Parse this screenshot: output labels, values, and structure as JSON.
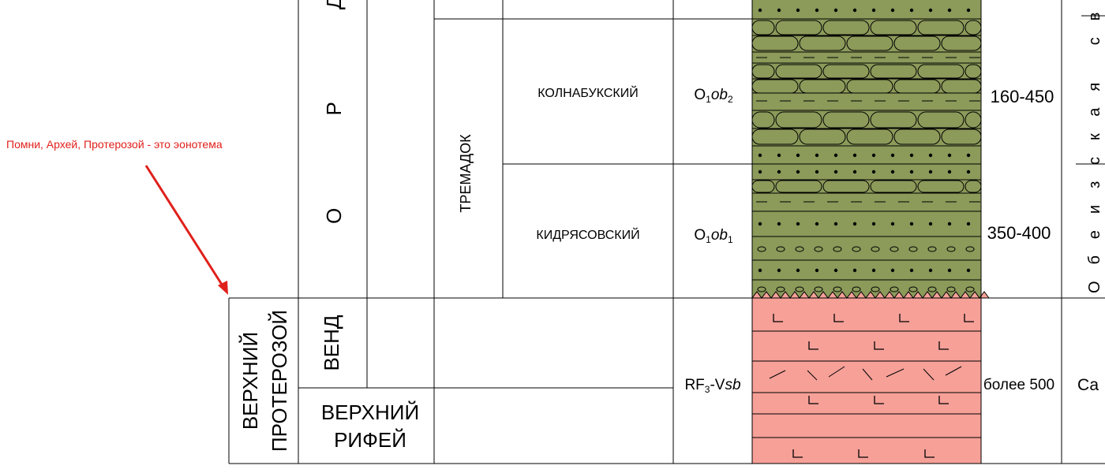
{
  "annotation": "Помни, Архей, Протерозой - это эонотема",
  "system": "О Р Д",
  "stage": "ТРЕМАДОК",
  "horizons": [
    {
      "name": "КОЛНАБУКСКИЙ",
      "index": {
        "base": "O",
        "sub1": "1",
        "ital": "ob",
        "sub2": "2"
      },
      "thickness": "160-450"
    },
    {
      "name": "КИДРЯСОВСКИЙ",
      "index": {
        "base": "O",
        "sub1": "1",
        "ital": "ob",
        "sub2": "1"
      },
      "thickness": "350-400"
    }
  ],
  "formation": "Обеизская св",
  "lower": {
    "erathem": [
      "ВЕРХНИЙ",
      "ПРОТЕРОЗОЙ"
    ],
    "vend": "ВЕНД",
    "riphean": [
      "ВЕРХНИЙ",
      "РИФЕЙ"
    ],
    "index": {
      "base": "RF",
      "sub": "3",
      "mid": "-V",
      "ital": "sb"
    },
    "thickness": "более 500",
    "formation": "Са"
  }
}
